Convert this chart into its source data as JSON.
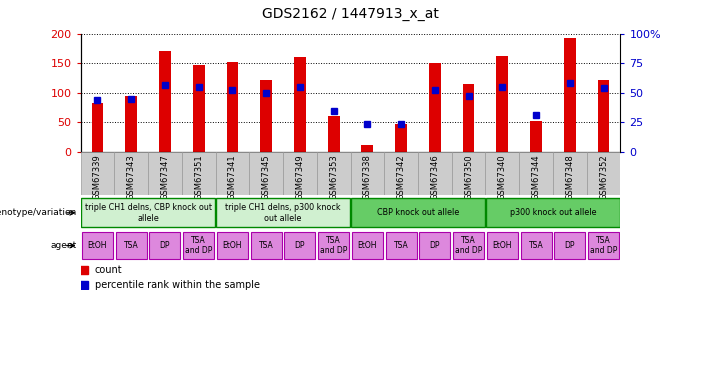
{
  "title": "GDS2162 / 1447913_x_at",
  "samples": [
    "GSM67339",
    "GSM67343",
    "GSM67347",
    "GSM67351",
    "GSM67341",
    "GSM67345",
    "GSM67349",
    "GSM67353",
    "GSM67338",
    "GSM67342",
    "GSM67346",
    "GSM67350",
    "GSM67340",
    "GSM67344",
    "GSM67348",
    "GSM67352"
  ],
  "counts": [
    82,
    95,
    170,
    147,
    152,
    122,
    160,
    60,
    12,
    47,
    150,
    115,
    163,
    53,
    192,
    122
  ],
  "percentiles": [
    44,
    45,
    57,
    55,
    52,
    50,
    55,
    35,
    24,
    24,
    52,
    47,
    55,
    31,
    58,
    54
  ],
  "bar_color": "#dd0000",
  "percentile_color": "#0000cc",
  "ylim_left": [
    0,
    200
  ],
  "ylim_right": [
    0,
    100
  ],
  "yticks_left": [
    0,
    50,
    100,
    150,
    200
  ],
  "yticks_right": [
    0,
    25,
    50,
    75,
    100
  ],
  "geno_groups": [
    {
      "label": "triple CH1 delns, CBP knock out\nallele",
      "start": 0,
      "end": 4,
      "color": "#d0f0d0"
    },
    {
      "label": "triple CH1 delns, p300 knock\nout allele",
      "start": 4,
      "end": 8,
      "color": "#d0f0d0"
    },
    {
      "label": "CBP knock out allele",
      "start": 8,
      "end": 12,
      "color": "#66cc66"
    },
    {
      "label": "p300 knock out allele",
      "start": 12,
      "end": 16,
      "color": "#66cc66"
    }
  ],
  "agents": [
    "EtOH",
    "TSA",
    "DP",
    "TSA\nand DP",
    "EtOH",
    "TSA",
    "DP",
    "TSA\nand DP",
    "EtOH",
    "TSA",
    "DP",
    "TSA\nand DP",
    "EtOH",
    "TSA",
    "DP",
    "TSA\nand DP"
  ],
  "agent_color": "#dd88dd",
  "agent_border": "#aa00aa",
  "geno_border": "#008800",
  "xtick_bg": "#cccccc",
  "bg_color": "#ffffff"
}
